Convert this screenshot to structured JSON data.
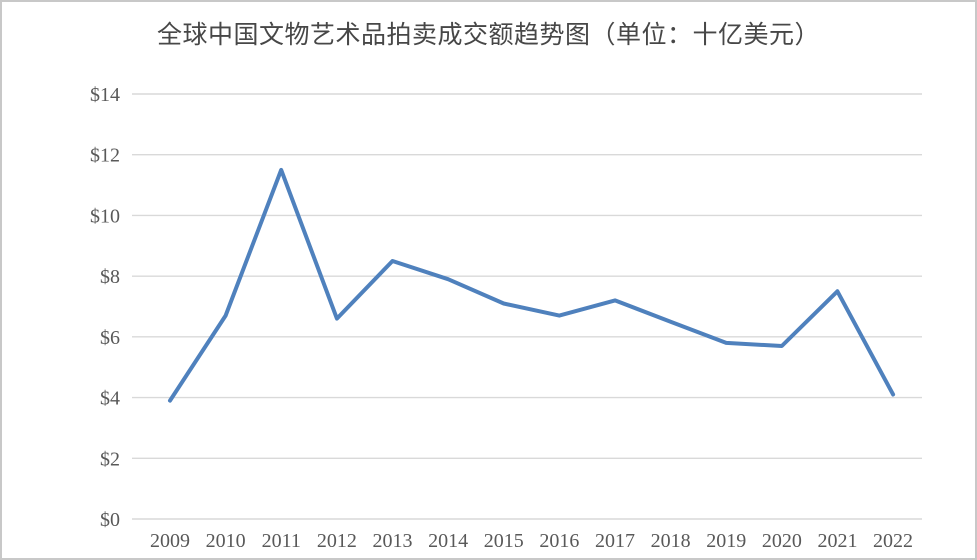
{
  "chart": {
    "title": "全球中国文物艺术品拍卖成交额趋势图（单位：十亿美元）"
  },
  "chart_data": {
    "type": "line",
    "title": "全球中国文物艺术品拍卖成交额趋势图（单位：十亿美元）",
    "categories": [
      "2009",
      "2010",
      "2011",
      "2012",
      "2013",
      "2014",
      "2015",
      "2016",
      "2017",
      "2018",
      "2019",
      "2020",
      "2021",
      "2022"
    ],
    "values": [
      3.9,
      6.7,
      11.5,
      6.6,
      8.5,
      7.9,
      7.1,
      6.7,
      7.2,
      6.5,
      5.8,
      5.7,
      7.5,
      4.1
    ],
    "ylabel": "",
    "xlabel": "",
    "ylim": [
      0,
      14
    ],
    "ytick_step": 2,
    "ytick_labels": [
      "$0",
      "$2",
      "$4",
      "$6",
      "$8",
      "$10",
      "$12",
      "$14"
    ],
    "grid": true,
    "legend": false,
    "line_color": "#4F81BD",
    "gridline_color": "#D9D9D9",
    "tick_label_color": "#595959",
    "title_color": "#474747",
    "background_color": "#FFFFFF",
    "border_color": "#C8C8C8"
  }
}
